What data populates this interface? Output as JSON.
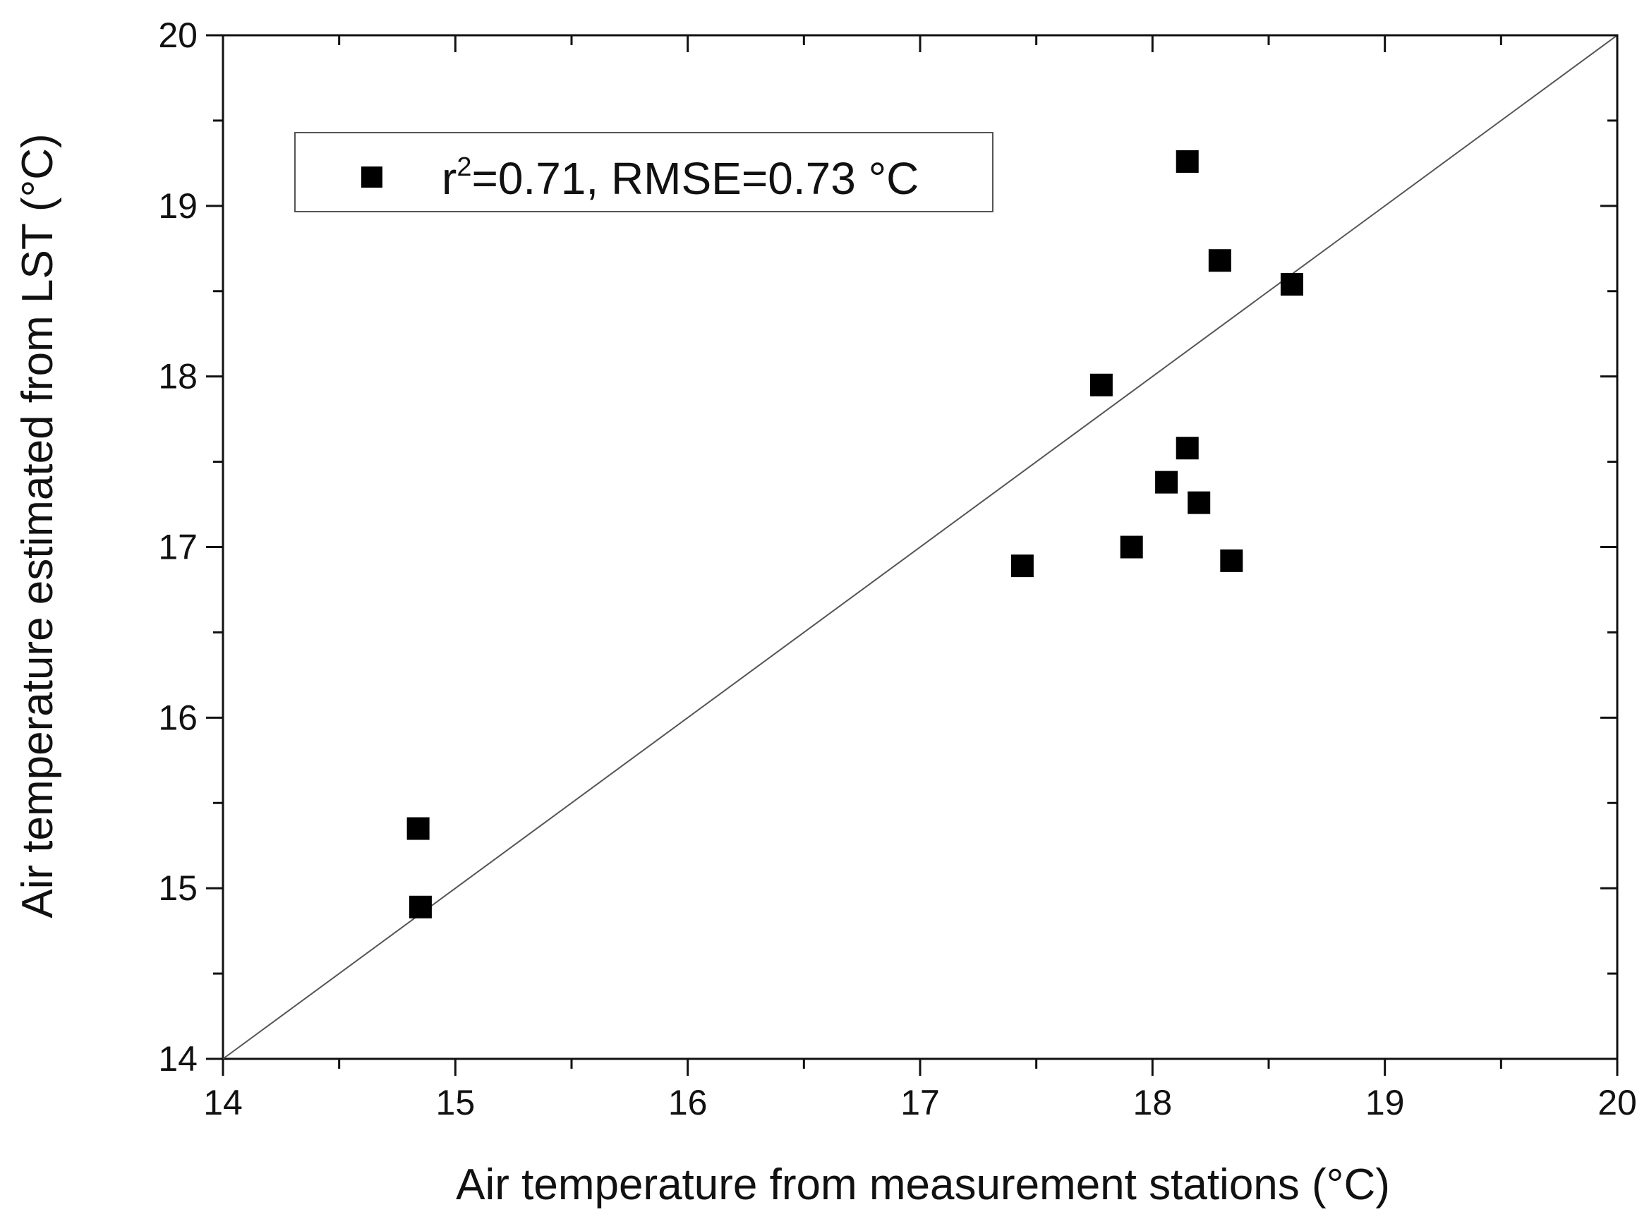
{
  "chart_data": {
    "type": "scatter",
    "xlabel": "Air temperature from measurement stations (°C)",
    "ylabel": "Air temperature estimated from LST (°C)",
    "xlim": [
      14,
      20
    ],
    "ylim": [
      14,
      20
    ],
    "xticks": [
      "14",
      "15",
      "16",
      "17",
      "18",
      "19",
      "20"
    ],
    "yticks": [
      "14",
      "15",
      "16",
      "17",
      "18",
      "19",
      "20"
    ],
    "grid": false,
    "legend": {
      "position": "top-left",
      "label_prefix": "r",
      "label_superscript": "2",
      "label_suffix": "=0.71, RMSE=0.73 °C"
    },
    "reference_line": "1:1",
    "marker": "square",
    "marker_color": "#000000",
    "line_color": "#555555",
    "series": [
      {
        "x": [
          14.84,
          14.85,
          17.44,
          17.78,
          17.91,
          18.06,
          18.15,
          18.15,
          18.2,
          18.29,
          18.34,
          18.6
        ],
        "y": [
          15.35,
          14.89,
          16.89,
          17.95,
          17.0,
          17.38,
          17.58,
          19.26,
          17.26,
          18.68,
          16.92,
          18.54
        ]
      }
    ]
  }
}
